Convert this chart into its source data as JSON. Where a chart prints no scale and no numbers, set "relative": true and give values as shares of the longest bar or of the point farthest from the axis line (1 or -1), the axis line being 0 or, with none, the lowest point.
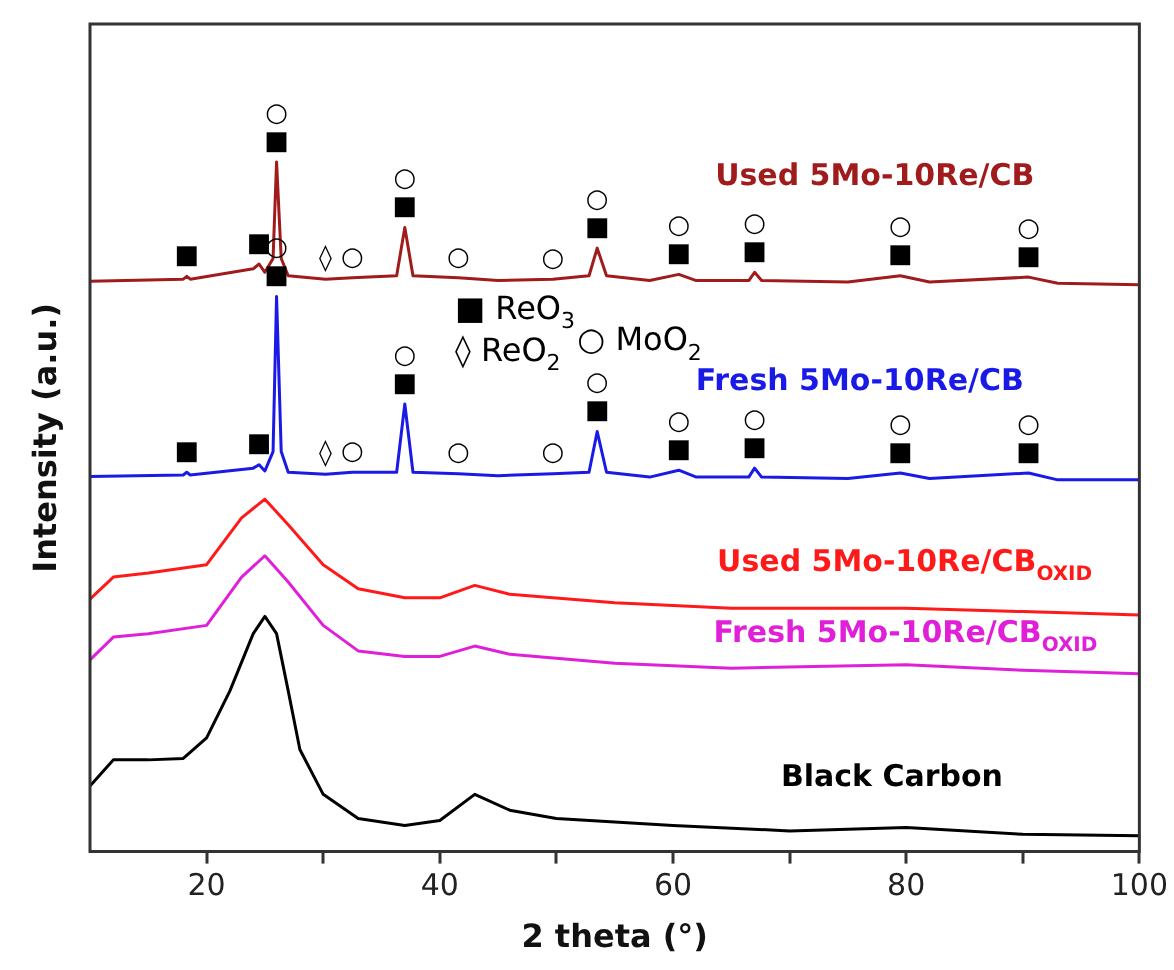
{
  "chart_data": {
    "type": "line",
    "relative": true,
    "xlabel": "2 theta (°)",
    "ylabel": "Intensity (a.u.)",
    "xlim": [
      10,
      100
    ],
    "xticks": [
      20,
      {
        "value": 30,
        "label": null
      },
      40,
      {
        "value": 50,
        "label": null
      },
      60,
      {
        "value": 70,
        "label": null
      },
      80,
      {
        "value": 90,
        "label": null
      },
      100
    ],
    "grid": false,
    "marker": "none",
    "line_style": "solid",
    "series": [
      {
        "name": "Used 5Mo-10Re/CB",
        "color": "#a01c1c",
        "x": [
          10,
          18,
          18.3,
          18.6,
          24,
          24.5,
          25,
          25.7,
          26,
          26.4,
          27,
          30.2,
          32.5,
          36.3,
          37,
          37.7,
          41.6,
          45,
          49.7,
          52.8,
          53.5,
          54.3,
          58,
          60.5,
          62,
          66.5,
          67,
          67.6,
          75,
          79.5,
          82,
          90.5,
          93,
          100
        ],
        "values": [
          0.827,
          0.83,
          0.834,
          0.83,
          0.845,
          0.852,
          0.84,
          0.86,
          1.0,
          0.86,
          0.835,
          0.83,
          0.832,
          0.835,
          0.905,
          0.835,
          0.832,
          0.828,
          0.83,
          0.835,
          0.875,
          0.835,
          0.828,
          0.837,
          0.828,
          0.828,
          0.84,
          0.828,
          0.826,
          0.835,
          0.826,
          0.833,
          0.824,
          0.822
        ]
      },
      {
        "name": "Fresh 5Mo-10Re/CB",
        "color": "#1a1ae6",
        "x": [
          10,
          18,
          18.3,
          18.6,
          24,
          24.5,
          25,
          25.7,
          26,
          26.4,
          27,
          30.2,
          32.5,
          36.3,
          37,
          37.7,
          41.6,
          45,
          49.7,
          52.8,
          53.5,
          54.3,
          58,
          60.5,
          62,
          66.5,
          67,
          67.6,
          75,
          79.5,
          82,
          90.5,
          93,
          100
        ],
        "values": [
          0.544,
          0.546,
          0.55,
          0.546,
          0.556,
          0.561,
          0.552,
          0.58,
          0.805,
          0.58,
          0.55,
          0.547,
          0.55,
          0.55,
          0.649,
          0.55,
          0.548,
          0.545,
          0.548,
          0.55,
          0.609,
          0.55,
          0.543,
          0.553,
          0.543,
          0.543,
          0.556,
          0.543,
          0.541,
          0.549,
          0.541,
          0.549,
          0.539,
          0.539
        ]
      },
      {
        "name": "Used 5Mo-10Re/CB$_{OXID}$",
        "color": "#ff1a1a",
        "x": [
          10,
          12,
          15,
          20,
          23,
          25,
          27,
          30,
          33,
          37,
          40,
          43,
          46,
          55,
          65,
          80,
          90,
          100
        ],
        "values": [
          0.366,
          0.398,
          0.404,
          0.416,
          0.484,
          0.511,
          0.474,
          0.416,
          0.381,
          0.368,
          0.368,
          0.386,
          0.373,
          0.361,
          0.353,
          0.353,
          0.348,
          0.343
        ]
      },
      {
        "name": "Fresh 5Mo-10Re/CB$_{OXID}$",
        "color": "#e020d8",
        "x": [
          10,
          12,
          15,
          20,
          23,
          25,
          27,
          30,
          33,
          37,
          40,
          43,
          46,
          55,
          65,
          80,
          90,
          100
        ],
        "values": [
          0.278,
          0.311,
          0.316,
          0.328,
          0.398,
          0.429,
          0.391,
          0.328,
          0.291,
          0.283,
          0.283,
          0.298,
          0.286,
          0.273,
          0.266,
          0.271,
          0.263,
          0.258
        ]
      },
      {
        "name": "Black Carbon",
        "color": "#000000",
        "x": [
          10,
          12,
          15,
          18,
          20,
          22,
          24,
          25,
          26,
          27,
          28,
          30,
          33,
          37,
          40,
          43,
          46,
          50,
          60,
          70,
          80,
          90,
          100
        ],
        "values": [
          0.095,
          0.133,
          0.133,
          0.135,
          0.165,
          0.233,
          0.316,
          0.341,
          0.316,
          0.233,
          0.148,
          0.083,
          0.048,
          0.038,
          0.045,
          0.083,
          0.06,
          0.048,
          0.038,
          0.03,
          0.035,
          0.025,
          0.023
        ]
      }
    ],
    "annotations": [
      "■ ReO$_{3}$",
      "◊ ReO$_{2}$",
      "○ MoO$_{2}$",
      {
        "text": "■",
        "x": 18.3,
        "y": 0.834
      },
      {
        "text": "■",
        "x": 24.5,
        "y": 0.852
      },
      {
        "text": "■",
        "x": 26,
        "y": 1.0
      },
      {
        "text": "○",
        "x": 26,
        "y": 1.0
      },
      {
        "text": "◊",
        "x": 30.2,
        "y": 0.83
      },
      {
        "text": "○",
        "x": 32.5,
        "y": 0.832
      },
      {
        "text": "■",
        "x": 37,
        "y": 0.905
      },
      {
        "text": "○",
        "x": 37,
        "y": 0.905
      },
      {
        "text": "○",
        "x": 41.6,
        "y": 0.832
      },
      {
        "text": "○",
        "x": 49.7,
        "y": 0.83
      },
      {
        "text": "■",
        "x": 53.5,
        "y": 0.875
      },
      {
        "text": "○",
        "x": 53.5,
        "y": 0.875
      },
      {
        "text": "■",
        "x": 60.5,
        "y": 0.837
      },
      {
        "text": "○",
        "x": 60.5,
        "y": 0.837
      },
      {
        "text": "■",
        "x": 67,
        "y": 0.84
      },
      {
        "text": "○",
        "x": 67,
        "y": 0.84
      },
      {
        "text": "■",
        "x": 79.5,
        "y": 0.835
      },
      {
        "text": "○",
        "x": 79.5,
        "y": 0.835
      },
      {
        "text": "■",
        "x": 90.5,
        "y": 0.833
      },
      {
        "text": "○",
        "x": 90.5,
        "y": 0.833
      },
      {
        "text": "■",
        "x": 18.3,
        "y": 0.55
      },
      {
        "text": "■",
        "x": 24.5,
        "y": 0.561
      },
      {
        "text": "■",
        "x": 26,
        "y": 0.805
      },
      {
        "text": "○",
        "x": 26,
        "y": 0.805
      },
      {
        "text": "◊",
        "x": 30.2,
        "y": 0.547
      },
      {
        "text": "○",
        "x": 32.5,
        "y": 0.55
      },
      {
        "text": "■",
        "x": 37,
        "y": 0.649
      },
      {
        "text": "○",
        "x": 37,
        "y": 0.649
      },
      {
        "text": "○",
        "x": 41.6,
        "y": 0.548
      },
      {
        "text": "○",
        "x": 49.7,
        "y": 0.548
      },
      {
        "text": "■",
        "x": 53.5,
        "y": 0.609
      },
      {
        "text": "○",
        "x": 53.5,
        "y": 0.609
      },
      {
        "text": "■",
        "x": 60.5,
        "y": 0.553
      },
      {
        "text": "○",
        "x": 60.5,
        "y": 0.553
      },
      {
        "text": "■",
        "x": 67,
        "y": 0.556
      },
      {
        "text": "○",
        "x": 67,
        "y": 0.556
      },
      {
        "text": "■",
        "x": 79.5,
        "y": 0.549
      },
      {
        "text": "○",
        "x": 79.5,
        "y": 0.549
      },
      {
        "text": "■",
        "x": 90.5,
        "y": 0.549
      },
      {
        "text": "○",
        "x": 90.5,
        "y": 0.549
      }
    ]
  }
}
